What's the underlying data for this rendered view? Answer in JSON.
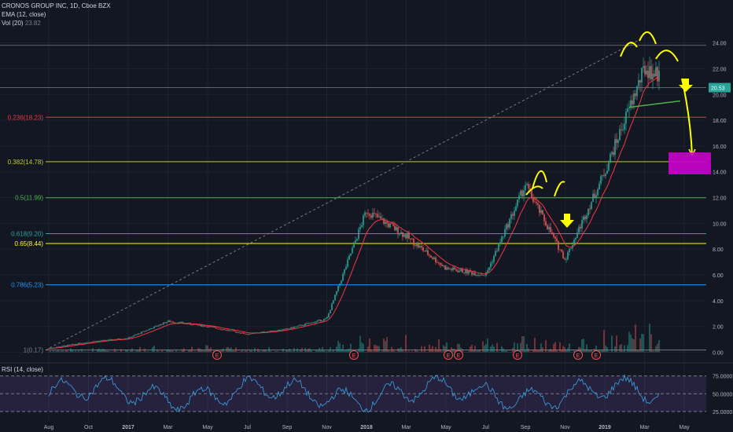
{
  "header": {
    "symbol": "CRONOS GROUP INC, 1D, Cboe BZX",
    "ema_label": "EMA (12, close)",
    "vol_label": "Vol (20)",
    "vol_value": "23.82",
    "rsi_label": "RSI (14, close)"
  },
  "colors": {
    "background": "#131722",
    "grid": "#1e2230",
    "up": "#26a69a",
    "down": "#ef5350",
    "annotation": "#ffff00",
    "target_box": "#cc00cc",
    "price_tag": "#26a69a"
  },
  "chart_data": {
    "type": "candlestick",
    "x_labels": [
      "Aug",
      "Oct",
      "2017",
      "Mar",
      "May",
      "Jul",
      "Sep",
      "Nov",
      "2018",
      "Mar",
      "May",
      "Jul",
      "Sep",
      "Nov",
      "2019",
      "Mar",
      "May"
    ],
    "y_labels": [
      "24.00",
      "22.00",
      "20.00",
      "18.00",
      "16.00",
      "14.00",
      "12.00",
      "10.00",
      "8.00",
      "6.00",
      "4.00",
      "2.00",
      "0.00"
    ],
    "last_price": "20.53",
    "price_series_note": "",
    "price_points": [
      [
        "Aug",
        0.3
      ],
      [
        "Oct",
        0.8
      ],
      [
        "2017",
        1.1
      ],
      [
        "Mar",
        2.4
      ],
      [
        "May",
        2.0
      ],
      [
        "Jul",
        1.4
      ],
      [
        "Sep",
        1.8
      ],
      [
        "Nov",
        2.6
      ],
      [
        "2018-Jan",
        11.0
      ],
      [
        "Mar",
        9.0
      ],
      [
        "May",
        6.5
      ],
      [
        "Jul",
        6.0
      ],
      [
        "Sep",
        13.0
      ],
      [
        "Nov",
        7.2
      ],
      [
        "2019-Jan",
        14.0
      ],
      [
        "Feb",
        22.0
      ],
      [
        "Mar",
        20.53
      ]
    ],
    "fib_levels": [
      {
        "label": "0.236(18.23)",
        "value": 18.23,
        "color": "#f23645"
      },
      {
        "label": "0.382(14.78)",
        "value": 14.78,
        "color": "#c0ca33"
      },
      {
        "label": "0.5(11.99)",
        "value": 11.99,
        "color": "#4caf50"
      },
      {
        "label": "0.618(9.20)",
        "value": 9.2,
        "color": "#26a69a"
      },
      {
        "label": "0.65(8.44)",
        "value": 8.44,
        "color": "#ffff00"
      },
      {
        "label": "0.786(5.23)",
        "value": 5.23,
        "color": "#2196f3"
      },
      {
        "label": "1(0.17)",
        "value": 0.17,
        "color": "#787b86"
      }
    ],
    "extra_levels": [
      23.82,
      20.53
    ],
    "earnings_marker": "E",
    "earnings_count": 7,
    "rsi": {
      "labels": [
        "75.0000",
        "50.0000",
        "25.0000"
      ],
      "values": [
        75,
        50,
        25
      ],
      "range": [
        15,
        90
      ]
    }
  }
}
